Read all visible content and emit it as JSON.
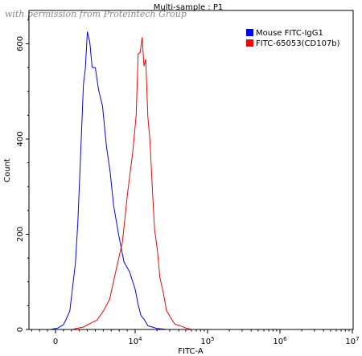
{
  "watermark": "with permission from Proteintech Group",
  "chart_data": {
    "type": "line",
    "title": "Multi-sample : P1",
    "xlabel": "FITC-A",
    "ylabel": "Count",
    "xscale": "biexponential",
    "ylim": [
      0,
      670
    ],
    "yticks": [
      0,
      200,
      400,
      600
    ],
    "xticks": [
      {
        "label": "0",
        "value": 0
      },
      {
        "label": "10^4",
        "base": "10",
        "exp": "4",
        "value": 10000
      },
      {
        "label": "10^5",
        "base": "10",
        "exp": "5",
        "value": 100000
      },
      {
        "label": "10^6",
        "base": "10",
        "exp": "6",
        "value": 1000000
      },
      {
        "label": "10^7",
        "base": "10",
        "exp": "7",
        "value": 10000000
      }
    ],
    "legend_position": "top-right",
    "series": [
      {
        "name": "Mouse FITC-IgG1",
        "color": "#0000ff",
        "points": [
          [
            -700,
            0
          ],
          [
            300,
            3
          ],
          [
            1000,
            10
          ],
          [
            1800,
            40
          ],
          [
            2500,
            140
          ],
          [
            3100,
            330
          ],
          [
            3500,
            520
          ],
          [
            4000,
            605
          ],
          [
            4600,
            580
          ],
          [
            5400,
            520
          ],
          [
            6400,
            400
          ],
          [
            7300,
            260
          ],
          [
            8600,
            150
          ],
          [
            10000,
            80
          ],
          [
            12000,
            30
          ],
          [
            15000,
            8
          ],
          [
            20000,
            2
          ],
          [
            28000,
            0
          ]
        ]
      },
      {
        "name": "FITC-65053(CD107b)",
        "color": "#ff0000",
        "points": [
          [
            2000,
            0
          ],
          [
            3500,
            5
          ],
          [
            5200,
            20
          ],
          [
            6800,
            60
          ],
          [
            8400,
            190
          ],
          [
            9700,
            380
          ],
          [
            11000,
            560
          ],
          [
            12500,
            625
          ],
          [
            14000,
            540
          ],
          [
            16000,
            380
          ],
          [
            18500,
            220
          ],
          [
            22000,
            110
          ],
          [
            27000,
            40
          ],
          [
            35000,
            12
          ],
          [
            50000,
            3
          ],
          [
            62000,
            0
          ]
        ]
      }
    ]
  }
}
